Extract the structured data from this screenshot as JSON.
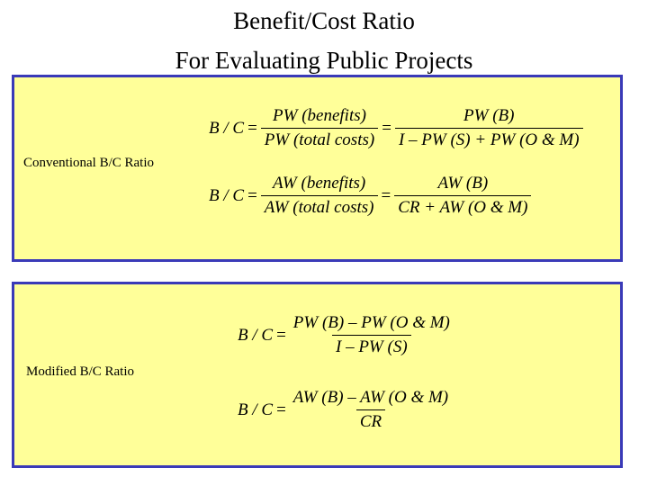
{
  "title": {
    "line1": "Benefit/Cost Ratio",
    "line2": "For Evaluating Public Projects"
  },
  "conventional": {
    "label": "Conventional B/C Ratio",
    "formula_pw": {
      "lhs": "B / C",
      "eq": "=",
      "frac1_num": "PW (benefits)",
      "frac1_den": "PW (total costs)",
      "frac2_num": "PW (B)",
      "frac2_den": "I – PW (S) + PW (O & M)"
    },
    "formula_aw": {
      "lhs": "B / C",
      "eq": "=",
      "frac1_num": "AW (benefits)",
      "frac1_den": "AW (total costs)",
      "frac2_num": "AW (B)",
      "frac2_den": "CR + AW (O & M)"
    }
  },
  "modified": {
    "label": "Modified B/C Ratio",
    "formula_pw": {
      "lhs": "B / C",
      "eq": "=",
      "num": "PW (B) – PW (O & M)",
      "den": "I – PW (S)"
    },
    "formula_aw": {
      "lhs": "B / C",
      "eq": "=",
      "num": "AW (B) – AW (O & M)",
      "den": "CR"
    }
  },
  "colors": {
    "panel_fill": "#ffff99",
    "panel_border": "#3a3ab8"
  }
}
